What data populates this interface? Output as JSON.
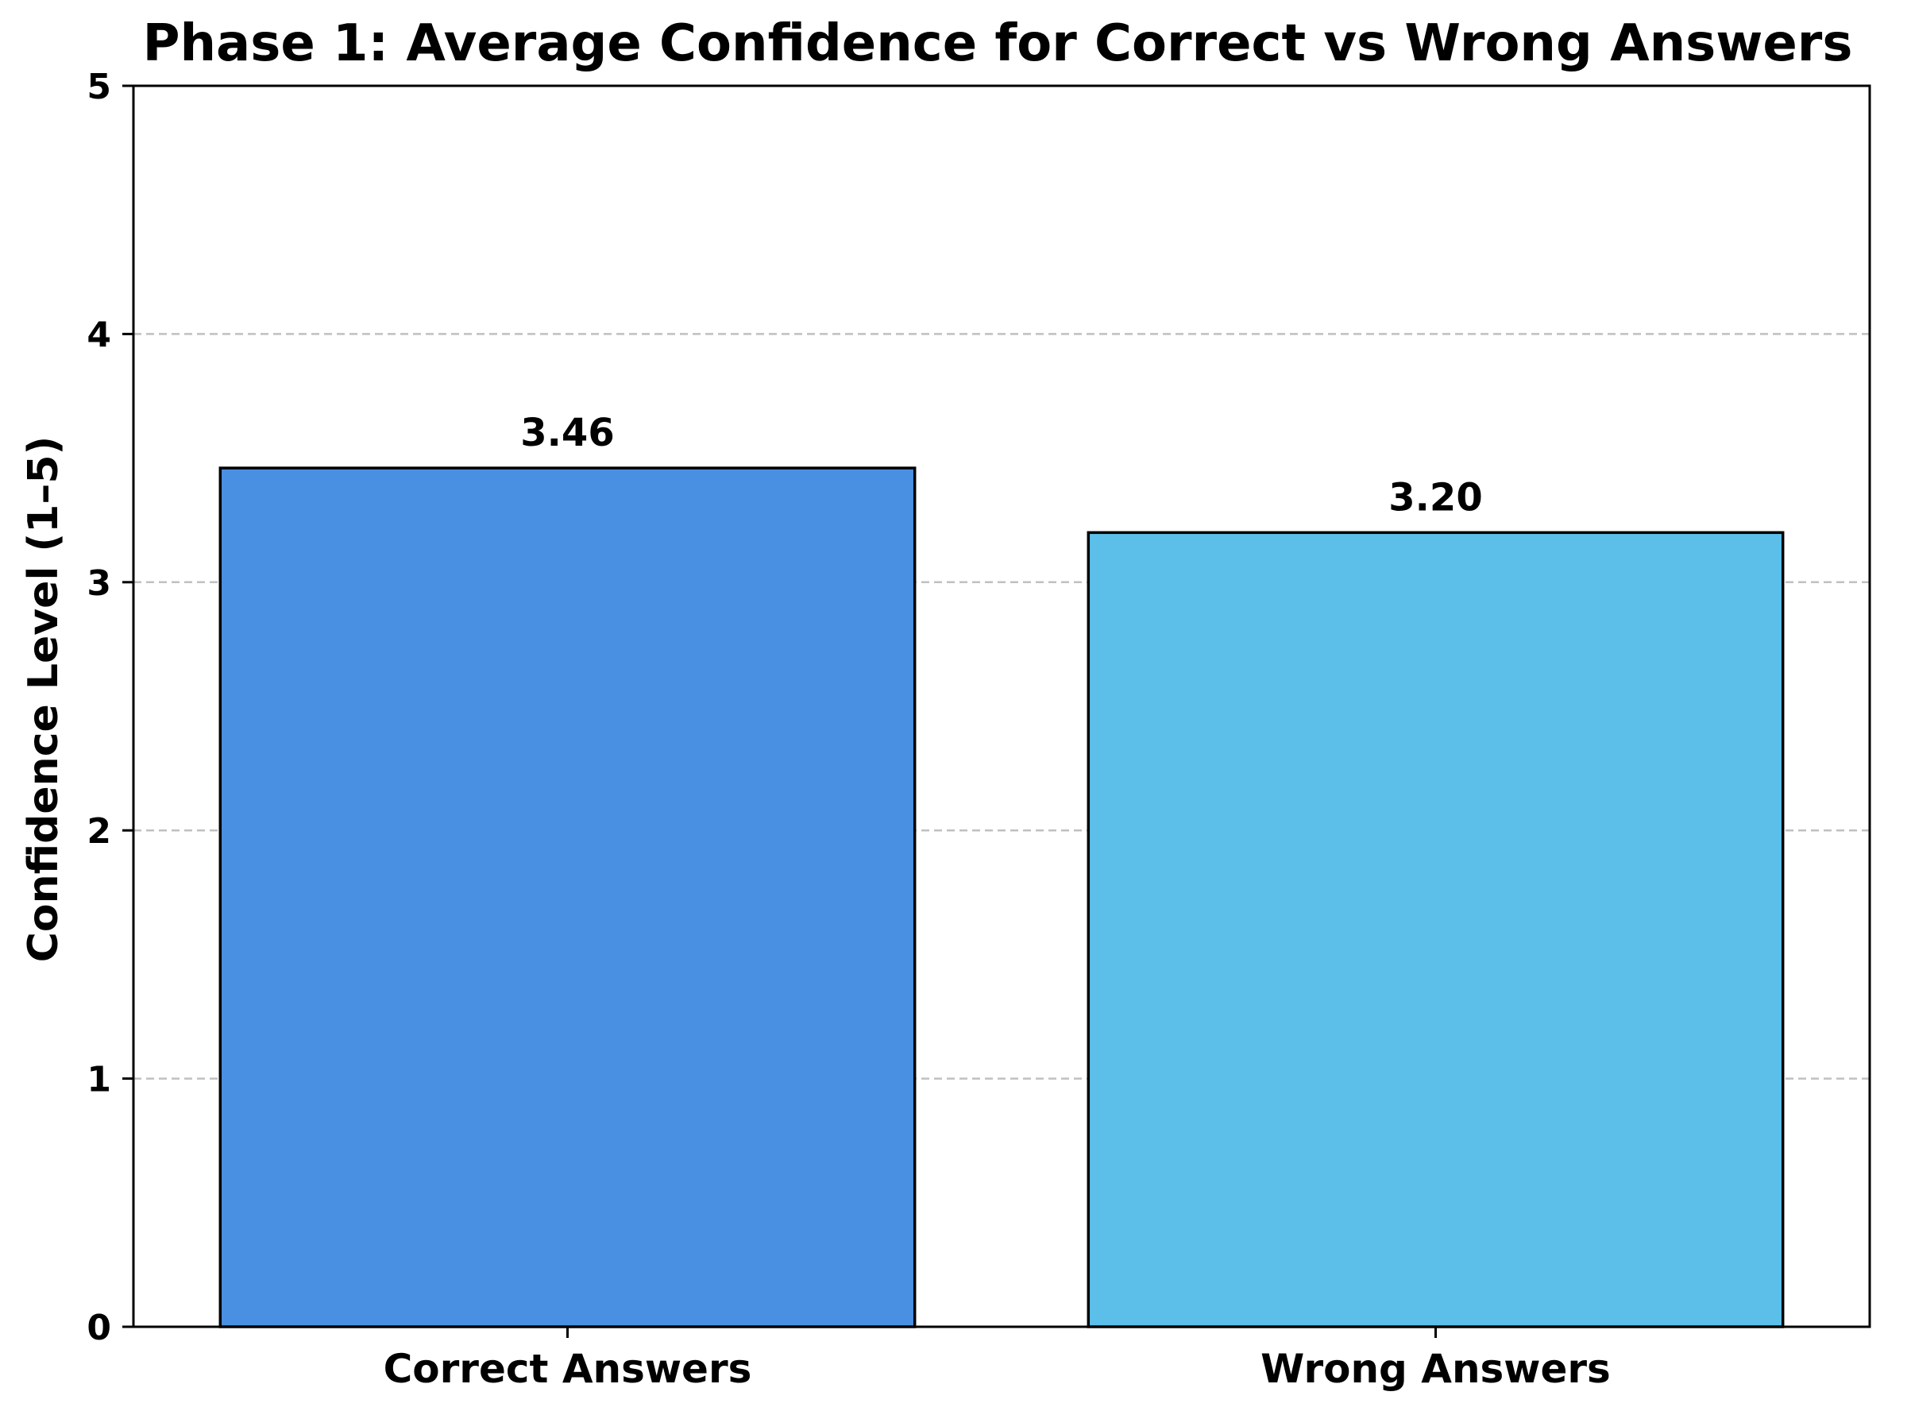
{
  "chart_data": {
    "type": "bar",
    "title": "Phase 1: Average Confidence for Correct vs Wrong Answers",
    "xlabel": "",
    "ylabel": "Confidence Level (1–5)",
    "categories": [
      "Correct Answers",
      "Wrong Answers"
    ],
    "values": [
      3.46,
      3.2
    ],
    "value_labels": [
      "3.46",
      "3.20"
    ],
    "bar_colors": [
      "#4a90e2",
      "#5bbfea"
    ],
    "bar_edge_color": "#000000",
    "ylim": [
      0,
      5
    ],
    "yticks": [
      0,
      1,
      2,
      3,
      4,
      5
    ],
    "ytick_labels": [
      "0",
      "1",
      "2",
      "3",
      "4",
      "5"
    ],
    "grid": {
      "axis": "y",
      "style": "dashed",
      "color": "#c0c0c0"
    },
    "legend": null
  }
}
